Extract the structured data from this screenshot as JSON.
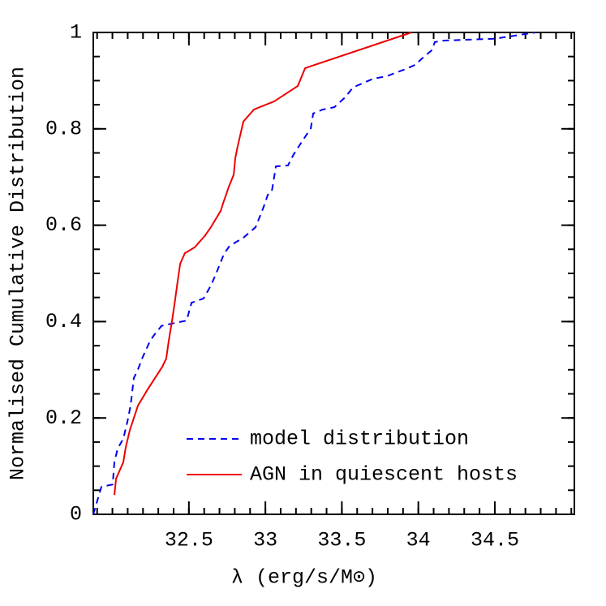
{
  "chart_data": {
    "type": "line",
    "x_label": "λ (erg/s/M⊙)",
    "y_label": "Normalised Cumulative Distribution",
    "xlim": [
      31.875,
      35.02
    ],
    "ylim": [
      0,
      1
    ],
    "xticks": [
      32.5,
      33,
      33.5,
      34,
      34.5
    ],
    "yticks": [
      0,
      0.2,
      0.4,
      0.6,
      0.8,
      1
    ],
    "legend": "lower right",
    "series": [
      {
        "name": "model distribution",
        "color": "#0000ee",
        "dashed": true,
        "x": [
          31.875,
          31.928,
          32.002,
          32.013,
          32.034,
          32.071,
          32.098,
          32.119,
          32.14,
          32.167,
          32.199,
          32.246,
          32.273,
          32.321,
          32.406,
          32.485,
          32.517,
          32.596,
          32.644,
          32.676,
          32.729,
          32.766,
          32.856,
          32.936,
          32.989,
          33.016,
          33.042,
          33.069,
          33.148,
          33.185,
          33.238,
          33.297,
          33.313,
          33.376,
          33.451,
          33.52,
          33.573,
          33.705,
          33.79,
          33.917,
          33.981,
          34.024,
          34.087,
          34.108,
          34.156,
          34.501,
          34.766
        ],
        "values": [
          0,
          0.057,
          0.062,
          0.108,
          0.136,
          0.157,
          0.192,
          0.226,
          0.283,
          0.301,
          0.327,
          0.36,
          0.372,
          0.391,
          0.397,
          0.402,
          0.439,
          0.448,
          0.475,
          0.498,
          0.54,
          0.557,
          0.574,
          0.596,
          0.638,
          0.663,
          0.67,
          0.722,
          0.724,
          0.747,
          0.773,
          0.801,
          0.832,
          0.84,
          0.845,
          0.865,
          0.886,
          0.904,
          0.909,
          0.924,
          0.933,
          0.946,
          0.963,
          0.98,
          0.983,
          0.987,
          1
        ]
      },
      {
        "name": "AGN in quiescent hosts",
        "color": "#ee0000",
        "dashed": false,
        "x": [
          32.013,
          32.024,
          32.071,
          32.087,
          32.114,
          32.167,
          32.23,
          32.326,
          32.352,
          32.368,
          32.39,
          32.406,
          32.427,
          32.443,
          32.474,
          32.538,
          32.607,
          32.644,
          32.708,
          32.724,
          32.761,
          32.793,
          32.803,
          32.819,
          32.856,
          32.925,
          33.058,
          33.212,
          33.26,
          33.955
        ],
        "values": [
          0.04,
          0.074,
          0.108,
          0.139,
          0.175,
          0.226,
          0.259,
          0.306,
          0.323,
          0.36,
          0.402,
          0.436,
          0.485,
          0.52,
          0.542,
          0.554,
          0.579,
          0.596,
          0.63,
          0.646,
          0.68,
          0.705,
          0.739,
          0.764,
          0.815,
          0.84,
          0.857,
          0.889,
          0.926,
          1
        ]
      }
    ]
  }
}
